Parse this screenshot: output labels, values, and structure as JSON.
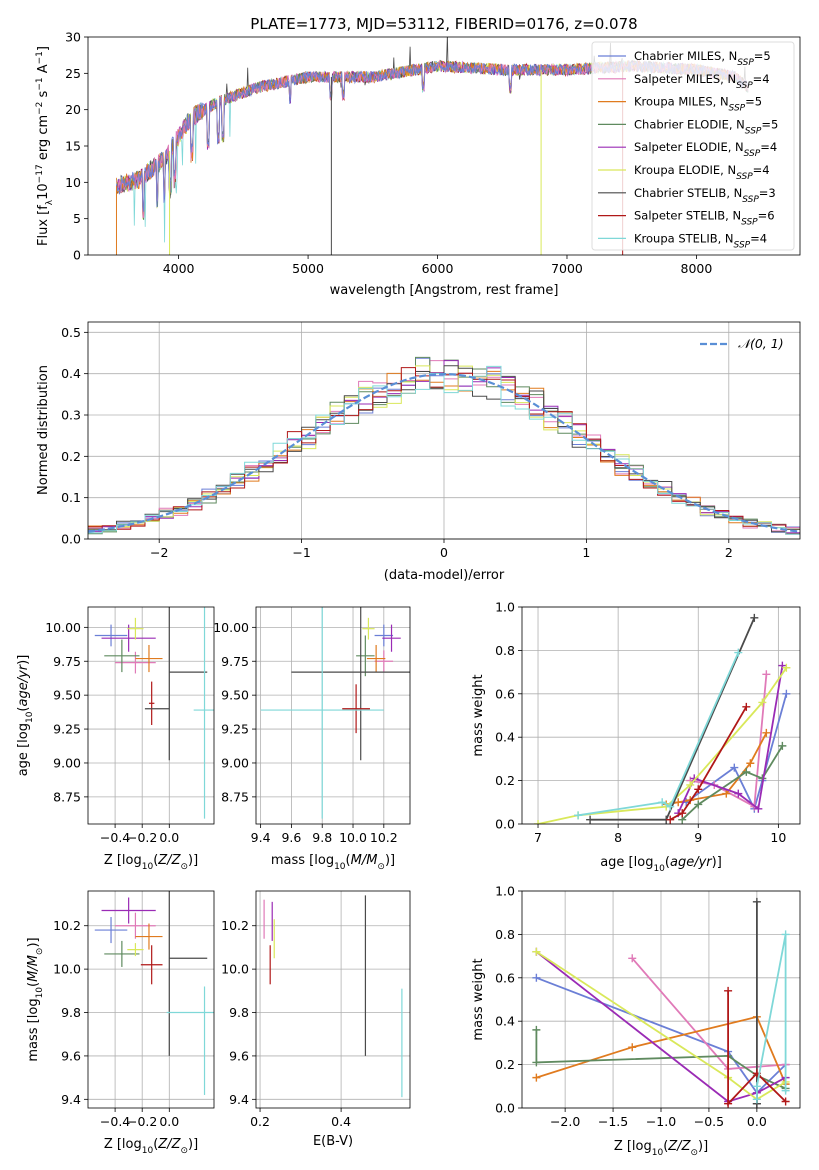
{
  "figure": {
    "title": "PLATE=1773, MJD=53112, FIBERID=0176, z=0.078"
  },
  "colors": {
    "Chabrier MILES": "#6b7fd6",
    "Salpeter MILES": "#e07ab8",
    "Kroupa MILES": "#e07b1f",
    "Chabrier ELODIE": "#5f8a5f",
    "Salpeter ELODIE": "#9a2bb5",
    "Kroupa ELODIE": "#d9e85a",
    "Chabrier STELIB": "#4a4a4a",
    "Salpeter STELIB": "#b01818",
    "Kroupa STELIB": "#7fd8d8",
    "normal": "#5a8fd6"
  },
  "chart_data": [
    {
      "id": "spectrum",
      "type": "line",
      "title": "PLATE=1773, MJD=53112, FIBERID=0176, z=0.078",
      "xlabel": "wavelength [Angstrom, rest frame]",
      "ylabel": "Flux [f_λ 10^-17 erg cm^-2 s^-1 A^-1]",
      "xlim": [
        3300,
        8800
      ],
      "ylim": [
        0,
        30
      ],
      "xticks": [
        4000,
        5000,
        6000,
        7000,
        8000
      ],
      "yticks": [
        0,
        5,
        10,
        15,
        20,
        25,
        30
      ],
      "grid": false,
      "legend_position": "right",
      "legend": [
        {
          "label": "Chabrier MILES",
          "n": "5"
        },
        {
          "label": "Salpeter MILES",
          "n": "4"
        },
        {
          "label": "Kroupa MILES",
          "n": "5"
        },
        {
          "label": "Chabrier ELODIE",
          "n": "5"
        },
        {
          "label": "Salpeter ELODIE",
          "n": "4"
        },
        {
          "label": "Kroupa ELODIE",
          "n": "4"
        },
        {
          "label": "Chabrier STELIB",
          "n": "3"
        },
        {
          "label": "Salpeter STELIB",
          "n": "6"
        },
        {
          "label": "Kroupa STELIB",
          "n": "4"
        }
      ],
      "continuum": {
        "x": [
          3520,
          3700,
          3900,
          4100,
          4300,
          4600,
          5000,
          5500,
          6000,
          6500,
          7000,
          7500,
          8000,
          8300,
          8400
        ],
        "y": [
          9.5,
          10.5,
          13.5,
          19,
          21,
          23,
          24.5,
          24.5,
          26,
          25.5,
          25.5,
          26,
          25.5,
          24.5,
          23
        ]
      },
      "drops": [
        {
          "x": 3520,
          "to": 0,
          "series": "Kroupa MILES"
        },
        {
          "x": 3930,
          "to": 0,
          "series": "Kroupa ELODIE"
        },
        {
          "x": 5180,
          "to": 0,
          "series": "Chabrier STELIB"
        },
        {
          "x": 6800,
          "to": 0,
          "series": "Kroupa ELODIE"
        },
        {
          "x": 7430,
          "to": 0,
          "series": "Salpeter STELIB"
        }
      ]
    },
    {
      "id": "residuals",
      "type": "histogram",
      "xlabel": "(data-model)/error",
      "ylabel": "Normed distribution",
      "xlim": [
        -2.5,
        2.5
      ],
      "ylim": [
        0,
        0.525
      ],
      "xticks": [
        -2,
        -1,
        0,
        1,
        2
      ],
      "yticks": [
        0.0,
        0.1,
        0.2,
        0.3,
        0.4,
        0.5
      ],
      "grid": true,
      "legend_position": "top-right",
      "reference_curve": {
        "label": "𝒩(0, 1)",
        "mean": 0,
        "sigma": 1
      },
      "bin_width": 0.1
    },
    {
      "id": "age-vs-Z",
      "type": "errorbar",
      "xlabel": "Z [log10(Z/Z⊙)]",
      "ylabel": "age [log10(age/yr)]",
      "xlim": [
        -0.6,
        0.33
      ],
      "ylim": [
        8.55,
        10.15
      ],
      "xticks": [
        -0.4,
        -0.2,
        0.0
      ],
      "yticks": [
        8.75,
        9.0,
        9.25,
        9.5,
        9.75,
        10.0
      ],
      "grid": true,
      "points": [
        {
          "series": "Chabrier MILES",
          "x": -0.43,
          "xerr": 0.12,
          "y": 9.94,
          "yerr": 0.08
        },
        {
          "series": "Salpeter MILES",
          "x": -0.25,
          "xerr": 0.15,
          "y": 9.74,
          "yerr": 0.08
        },
        {
          "series": "Kroupa MILES",
          "x": -0.15,
          "xerr": 0.1,
          "y": 9.77,
          "yerr": 0.1
        },
        {
          "series": "Chabrier ELODIE",
          "x": -0.35,
          "xerr": 0.13,
          "y": 9.79,
          "yerr": 0.12
        },
        {
          "series": "Salpeter ELODIE",
          "x": -0.3,
          "xerr": 0.2,
          "y": 9.92,
          "yerr": 0.1
        },
        {
          "series": "Kroupa ELODIE",
          "x": -0.25,
          "xerr": 0.06,
          "y": 9.99,
          "yerr": 0.08
        },
        {
          "series": "Chabrier STELIB",
          "x": 0.0,
          "xerr": 0.0,
          "y": 9.67,
          "yerr": 0.65
        },
        {
          "series": "Chabrier STELIB",
          "x": 0.14,
          "xerr": 0.14,
          "y": 9.67,
          "yerr": 0.0
        },
        {
          "series": "Salpeter STELIB",
          "x": -0.13,
          "xerr": 0.02,
          "y": 9.44,
          "yerr": 0.16
        },
        {
          "series": "Chabrier STELIB",
          "x": -0.09,
          "xerr": 0.09,
          "y": 9.4,
          "yerr": 0.0
        },
        {
          "series": "Kroupa STELIB",
          "x": 0.26,
          "xerr": 0.08,
          "y": 9.39,
          "yerr": 0.8
        }
      ]
    },
    {
      "id": "age-vs-mass",
      "type": "errorbar",
      "xlabel": "mass [log10(M/M⊙)]",
      "ylabel": "",
      "xlim": [
        9.37,
        10.37
      ],
      "ylim": [
        8.55,
        10.15
      ],
      "xticks": [
        9.4,
        9.6,
        9.8,
        10.0,
        10.2
      ],
      "yticks": [
        8.75,
        9.0,
        9.25,
        9.5,
        9.75,
        10.0
      ],
      "grid": true,
      "points": [
        {
          "series": "Chabrier MILES",
          "x": 10.2,
          "xerr": 0.06,
          "y": 9.94,
          "yerr": 0.08
        },
        {
          "series": "Salpeter MILES",
          "x": 10.2,
          "xerr": 0.06,
          "y": 9.75,
          "yerr": 0.08
        },
        {
          "series": "Kroupa MILES",
          "x": 10.15,
          "xerr": 0.06,
          "y": 9.77,
          "yerr": 0.1
        },
        {
          "series": "Chabrier ELODIE",
          "x": 10.08,
          "xerr": 0.06,
          "y": 9.79,
          "yerr": 0.15
        },
        {
          "series": "Salpeter ELODIE",
          "x": 10.25,
          "xerr": 0.06,
          "y": 9.92,
          "yerr": 0.1
        },
        {
          "series": "Kroupa ELODIE",
          "x": 10.1,
          "xerr": 0.04,
          "y": 9.99,
          "yerr": 0.08
        },
        {
          "series": "Chabrier STELIB",
          "x": 10.05,
          "xerr": 0.45,
          "y": 9.67,
          "yerr": 0.65
        },
        {
          "series": "Salpeter STELIB",
          "x": 10.02,
          "xerr": 0.09,
          "y": 9.4,
          "yerr": 0.18
        },
        {
          "series": "Kroupa STELIB",
          "x": 9.8,
          "xerr": 0.4,
          "y": 9.39,
          "yerr": 0.8
        }
      ]
    },
    {
      "id": "weight-vs-age",
      "type": "line",
      "xlabel": "age [log10(age/yr)]",
      "ylabel": "mass weight",
      "xlim": [
        6.8,
        10.27
      ],
      "ylim": [
        0,
        1.0
      ],
      "xticks": [
        7,
        8,
        9,
        10
      ],
      "yticks": [
        0.0,
        0.2,
        0.4,
        0.6,
        0.8,
        1.0
      ],
      "grid": true,
      "series": [
        {
          "name": "Chabrier MILES",
          "x": [
            8.85,
            9.45,
            9.7,
            9.8,
            10.1
          ],
          "y": [
            0.1,
            0.26,
            0.07,
            0.2,
            0.6
          ]
        },
        {
          "name": "Salpeter MILES",
          "x": [
            8.9,
            9.2,
            9.7,
            9.85
          ],
          "y": [
            0.2,
            0.18,
            0.08,
            0.69
          ]
        },
        {
          "name": "Kroupa MILES",
          "x": [
            8.6,
            8.75,
            8.9,
            9.35,
            9.65,
            9.85
          ],
          "y": [
            0.09,
            0.1,
            0.11,
            0.14,
            0.28,
            0.42
          ]
        },
        {
          "name": "Chabrier ELODIE",
          "x": [
            8.8,
            9.0,
            9.6,
            9.8,
            10.05
          ],
          "y": [
            0.02,
            0.09,
            0.24,
            0.21,
            0.36
          ]
        },
        {
          "name": "Salpeter ELODIE",
          "x": [
            8.75,
            8.95,
            9.5,
            9.75,
            10.05
          ],
          "y": [
            0.05,
            0.21,
            0.14,
            0.07,
            0.73
          ]
        },
        {
          "name": "Kroupa ELODIE",
          "x": [
            7.0,
            7.5,
            8.6,
            8.9,
            9.8,
            10.1
          ],
          "y": [
            0.0,
            0.04,
            0.08,
            0.18,
            0.56,
            0.72
          ]
        },
        {
          "name": "Chabrier STELIB",
          "x": [
            7.65,
            8.6,
            9.7
          ],
          "y": [
            0.02,
            0.02,
            0.95
          ]
        },
        {
          "name": "Salpeter STELIB",
          "x": [
            8.65,
            8.8,
            9.0,
            9.6
          ],
          "y": [
            0.02,
            0.05,
            0.16,
            0.54
          ]
        },
        {
          "name": "Kroupa STELIB",
          "x": [
            7.5,
            8.55,
            8.65,
            9.5
          ],
          "y": [
            0.04,
            0.1,
            0.08,
            0.79
          ]
        }
      ]
    },
    {
      "id": "mass-vs-Z",
      "type": "errorbar",
      "xlabel": "Z [log10(Z/Z⊙)]",
      "ylabel": "mass [log10(M/M⊙)]",
      "xlim": [
        -0.6,
        0.33
      ],
      "ylim": [
        9.36,
        10.36
      ],
      "xticks": [
        -0.4,
        -0.2,
        0.0
      ],
      "yticks": [
        9.4,
        9.6,
        9.8,
        10.0,
        10.2
      ],
      "grid": true,
      "points": [
        {
          "series": "Chabrier MILES",
          "x": -0.43,
          "xerr": 0.12,
          "y": 10.18,
          "yerr": 0.06
        },
        {
          "series": "Salpeter MILES",
          "x": -0.25,
          "xerr": 0.15,
          "y": 10.2,
          "yerr": 0.06
        },
        {
          "series": "Kroupa MILES",
          "x": -0.15,
          "xerr": 0.1,
          "y": 10.15,
          "yerr": 0.06
        },
        {
          "series": "Chabrier ELODIE",
          "x": -0.35,
          "xerr": 0.13,
          "y": 10.07,
          "yerr": 0.06
        },
        {
          "series": "Salpeter ELODIE",
          "x": -0.3,
          "xerr": 0.2,
          "y": 10.27,
          "yerr": 0.06
        },
        {
          "series": "Kroupa ELODIE",
          "x": -0.25,
          "xerr": 0.06,
          "y": 10.09,
          "yerr": 0.03
        },
        {
          "series": "Chabrier STELIB",
          "x": 0.0,
          "xerr": 0.0,
          "y": 10.05,
          "yerr": 0.45
        },
        {
          "series": "Chabrier STELIB",
          "x": 0.14,
          "xerr": 0.14,
          "y": 10.05,
          "yerr": 0.0
        },
        {
          "series": "Salpeter STELIB",
          "x": -0.13,
          "xerr": 0.08,
          "y": 10.02,
          "yerr": 0.09
        },
        {
          "series": "Kroupa STELIB",
          "x": 0.16,
          "xerr": 0.18,
          "y": 9.8,
          "yerr": 0.0
        },
        {
          "series": "Kroupa STELIB",
          "x": 0.26,
          "xerr": 0.0,
          "y": 9.67,
          "yerr": 0.25
        }
      ]
    },
    {
      "id": "mass-vs-EBV",
      "type": "errorbar",
      "xlabel": "E(B-V)",
      "ylabel": "",
      "xlim": [
        0.19,
        0.57
      ],
      "ylim": [
        9.36,
        10.36
      ],
      "xticks": [
        0.2,
        0.4
      ],
      "yticks": [
        9.4,
        9.6,
        9.8,
        10.0,
        10.2
      ],
      "grid": true,
      "points": [
        {
          "series": "Salpeter MILES",
          "x": 0.21,
          "y": 10.23,
          "yerr": 0.09
        },
        {
          "series": "Salpeter ELODIE",
          "x": 0.23,
          "y": 10.22,
          "yerr": 0.09
        },
        {
          "series": "Kroupa ELODIE",
          "x": 0.235,
          "y": 10.14,
          "yerr": 0.09
        },
        {
          "series": "Salpeter STELIB",
          "x": 0.225,
          "y": 10.02,
          "yerr": 0.09
        },
        {
          "series": "Chabrier STELIB",
          "x": 0.46,
          "y": 9.97,
          "yerr": 0.37
        },
        {
          "series": "Kroupa STELIB",
          "x": 0.55,
          "y": 9.66,
          "yerr": 0.25
        }
      ]
    },
    {
      "id": "weight-vs-Z",
      "type": "line",
      "xlabel": "Z [log10(Z/Z⊙)]",
      "ylabel": "mass weight",
      "xlim": [
        -2.45,
        0.45
      ],
      "ylim": [
        0,
        1.0
      ],
      "xticks": [
        -2.0,
        -1.5,
        -1.0,
        -0.5,
        0.0
      ],
      "yticks": [
        0.0,
        0.2,
        0.4,
        0.6,
        0.8,
        1.0
      ],
      "grid": true,
      "series": [
        {
          "name": "Chabrier MILES",
          "x": [
            -2.3,
            -0.3,
            0.0,
            0.3
          ],
          "y": [
            0.6,
            0.26,
            0.07,
            0.2
          ]
        },
        {
          "name": "Salpeter MILES",
          "x": [
            -1.3,
            -0.3,
            0.3
          ],
          "y": [
            0.69,
            0.18,
            0.2
          ]
        },
        {
          "name": "Kroupa MILES",
          "x": [
            -2.3,
            -1.3,
            0.0,
            0.3
          ],
          "y": [
            0.14,
            0.28,
            0.42,
            0.11
          ]
        },
        {
          "name": "Chabrier ELODIE",
          "x": [
            -2.3,
            -2.3,
            -0.3,
            0.0,
            0.3
          ],
          "y": [
            0.36,
            0.21,
            0.24,
            0.15,
            0.09
          ]
        },
        {
          "name": "Salpeter ELODIE",
          "x": [
            -2.3,
            -0.3,
            0.0,
            0.3
          ],
          "y": [
            0.72,
            0.03,
            0.07,
            0.14
          ]
        },
        {
          "name": "Kroupa ELODIE",
          "x": [
            -2.3,
            -0.3,
            0.0,
            0.3
          ],
          "y": [
            0.72,
            0.14,
            0.04,
            0.12
          ]
        },
        {
          "name": "Chabrier STELIB",
          "x": [
            0.0,
            0.0,
            0.0
          ],
          "y": [
            0.95,
            0.02,
            0.02
          ]
        },
        {
          "name": "Salpeter STELIB",
          "x": [
            -0.3,
            -0.3,
            0.0,
            0.3
          ],
          "y": [
            0.54,
            0.02,
            0.16,
            0.03
          ]
        },
        {
          "name": "Kroupa STELIB",
          "x": [
            0.0,
            0.0,
            0.3,
            0.3
          ],
          "y": [
            0.04,
            0.1,
            0.8,
            0.08
          ]
        }
      ]
    }
  ]
}
